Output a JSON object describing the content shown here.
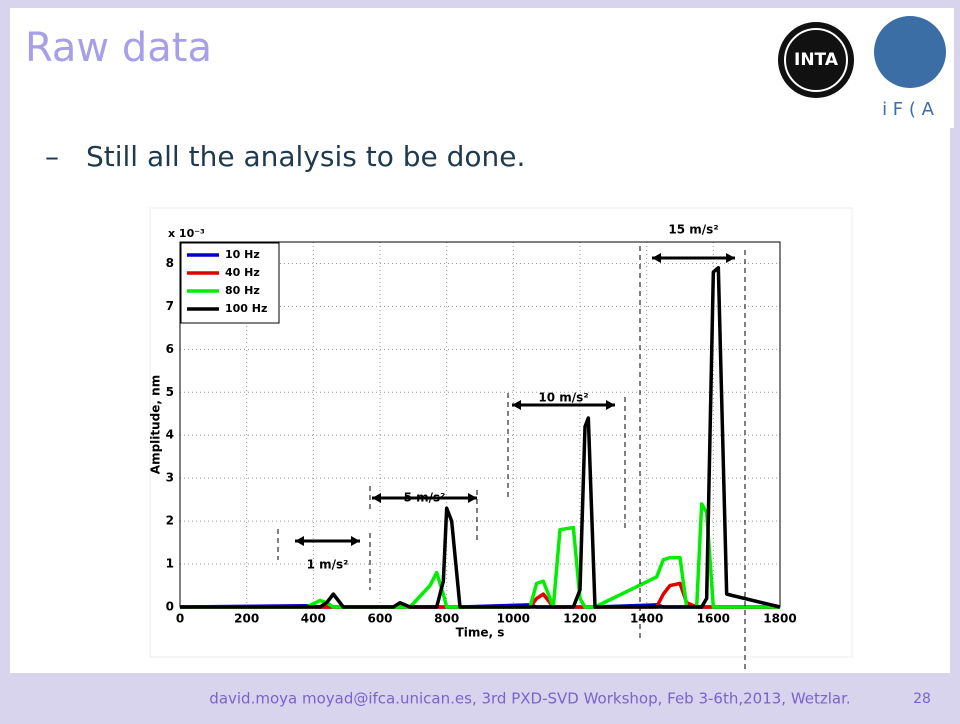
{
  "slide": {
    "title": "Raw data",
    "bullet": "Still all the analysis to be done.",
    "bullet_marker": "–",
    "logos": [
      "INTA",
      "i F ( A"
    ],
    "footer": "david.moya moyad@ifca.unican.es, 3rd PXD-SVD Workshop, Feb 3-6th,2013, Wetzlar.",
    "page": "28"
  },
  "chart_data": {
    "type": "line",
    "xlabel": "Time, s",
    "ylabel": "Amplitude, nm",
    "y_scale_note": "x 10⁻³",
    "x": [
      0,
      380,
      420,
      440,
      460,
      490,
      640,
      660,
      690,
      750,
      770,
      790,
      800,
      815,
      840,
      1050,
      1070,
      1090,
      1120,
      1140,
      1180,
      1200,
      1215,
      1225,
      1245,
      1430,
      1450,
      1470,
      1500,
      1520,
      1550,
      1565,
      1580,
      1600,
      1615,
      1640,
      1800
    ],
    "series": [
      {
        "name": "10 Hz",
        "color": "#0000cc",
        "values": [
          0,
          0.03,
          0,
          0,
          0,
          0,
          0,
          0,
          0,
          0,
          0,
          0,
          0,
          0,
          0,
          0.05,
          0,
          0,
          0,
          0,
          0,
          0,
          0,
          0,
          0,
          0.05,
          0,
          0,
          0,
          0,
          0,
          0,
          0,
          0,
          0,
          0,
          0
        ]
      },
      {
        "name": "40 Hz",
        "color": "#e00000",
        "values": [
          0,
          0,
          0,
          0,
          0,
          0,
          0,
          0,
          0,
          0,
          0,
          0,
          0,
          0,
          0,
          0,
          0.2,
          0.3,
          0,
          0,
          0,
          0,
          0,
          0,
          0,
          0,
          0.3,
          0.5,
          0.55,
          0.1,
          0,
          0,
          0,
          0,
          0,
          0,
          0
        ]
      },
      {
        "name": "80 Hz",
        "color": "#00ee00",
        "values": [
          0,
          0,
          0.15,
          0.1,
          0,
          0,
          0,
          0,
          0,
          0.5,
          0.8,
          0.3,
          0,
          0,
          0,
          0,
          0.55,
          0.6,
          0,
          1.8,
          1.85,
          0.2,
          0,
          0,
          0,
          0.7,
          1.1,
          1.15,
          1.15,
          0,
          0,
          2.4,
          2.2,
          0,
          0,
          0,
          0
        ]
      },
      {
        "name": "100 Hz",
        "color": "#000000",
        "values": [
          0,
          0,
          0,
          0.1,
          0.3,
          0,
          0,
          0.1,
          0,
          0,
          0,
          0.6,
          2.3,
          2.0,
          0,
          0,
          0,
          0,
          0,
          0,
          0,
          0.4,
          4.2,
          4.4,
          0,
          0,
          0,
          0,
          0,
          0,
          0,
          0,
          0.2,
          7.8,
          7.9,
          0.3,
          0
        ]
      }
    ],
    "annotations": [
      "1 m/s²",
      "5 m/s²",
      "10 m/s²",
      "15 m/s²"
    ],
    "xlim": [
      0,
      1800
    ],
    "xticks": [
      0,
      200,
      400,
      600,
      800,
      1000,
      1200,
      1400,
      1600,
      1800
    ],
    "ylim": [
      0,
      8.5
    ],
    "yticks": [
      0,
      1,
      2,
      3,
      4,
      5,
      6,
      7,
      8
    ],
    "grid": true,
    "legend": "upper left"
  }
}
